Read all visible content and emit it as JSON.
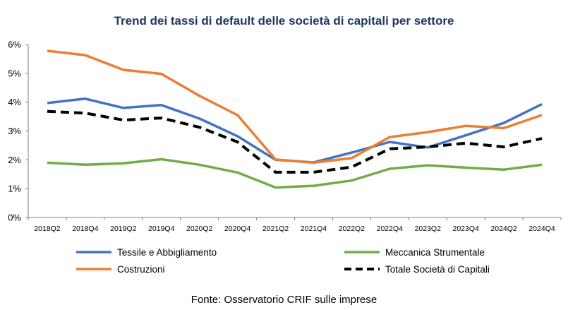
{
  "chart_data": {
    "type": "line",
    "title": "Trend dei tassi di default delle società di capitali per settore",
    "xlabel": "",
    "ylabel": "",
    "categories": [
      "2018Q2",
      "2018Q4",
      "2019Q2",
      "2019Q4",
      "2020Q2",
      "2020Q4",
      "2021Q2",
      "2021Q4",
      "2022Q2",
      "2022Q4",
      "2023Q2",
      "2023Q4",
      "2024Q2",
      "2024Q4"
    ],
    "ylim": [
      0,
      6
    ],
    "yticks": [
      "0%",
      "1%",
      "2%",
      "3%",
      "4%",
      "5%",
      "6%"
    ],
    "grid": false,
    "legend_position": "bottom",
    "series": [
      {
        "name": "Tessile e Abbigliamento",
        "color": "#4472c4",
        "dash": "solid",
        "values": [
          3.97,
          4.12,
          3.8,
          3.9,
          3.43,
          2.82,
          2.0,
          1.91,
          2.25,
          2.62,
          2.43,
          2.85,
          3.28,
          3.93
        ]
      },
      {
        "name": "Meccanica Strumentale",
        "color": "#70ad47",
        "dash": "solid",
        "values": [
          1.9,
          1.83,
          1.88,
          2.02,
          1.83,
          1.56,
          1.04,
          1.1,
          1.28,
          1.69,
          1.81,
          1.73,
          1.66,
          1.83
        ]
      },
      {
        "name": "Costruzioni",
        "color": "#ed7d31",
        "dash": "solid",
        "values": [
          5.78,
          5.63,
          5.12,
          4.98,
          4.22,
          3.55,
          2.01,
          1.9,
          2.06,
          2.79,
          2.96,
          3.18,
          3.1,
          3.55
        ]
      },
      {
        "name": "Totale Società di Capitali",
        "color": "#000000",
        "dash": "dashed",
        "values": [
          3.68,
          3.62,
          3.38,
          3.45,
          3.13,
          2.62,
          1.57,
          1.57,
          1.75,
          2.38,
          2.45,
          2.58,
          2.45,
          2.74
        ]
      }
    ]
  },
  "source_note": "Fonte: Osservatorio CRIF sulle imprese"
}
